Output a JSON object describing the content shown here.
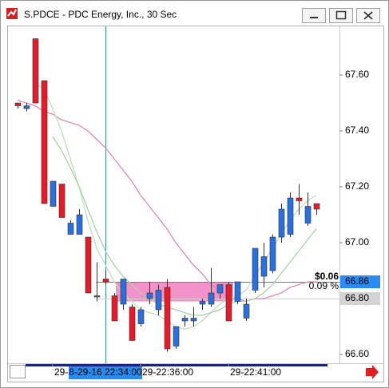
{
  "window_title": "S.PDCE - PDC Energy, Inc., 30 Sec",
  "chart_data": {
    "type": "candlestick",
    "categories": [
      null,
      null,
      null,
      null,
      "29-",
      null,
      null,
      null,
      null,
      null,
      "8-29-16 22:34:00",
      null,
      null,
      null,
      "29-22:36:00",
      null,
      null,
      null,
      null,
      null,
      null,
      null,
      null,
      null,
      "29-22:41:00",
      null,
      null,
      null,
      null,
      null,
      null,
      null,
      null,
      null,
      null
    ],
    "cursor_index": 10,
    "open": [
      67.5,
      67.48,
      67.73,
      67.58,
      67.13,
      67.21,
      67.03,
      67.03,
      67.02,
      66.81,
      66.87,
      66.81,
      66.78,
      66.77,
      66.71,
      66.8,
      66.76,
      66.84,
      66.63,
      66.72,
      66.72,
      66.78,
      66.78,
      66.82,
      66.85,
      66.79,
      66.73,
      66.83,
      66.88,
      66.9,
      67.02,
      67.03,
      67.16,
      67.07,
      67.14
    ],
    "high": [
      67.5,
      67.5,
      67.73,
      67.58,
      67.22,
      67.21,
      67.08,
      67.12,
      67.02,
      66.93,
      66.9,
      66.82,
      66.87,
      66.78,
      66.77,
      66.86,
      66.85,
      66.87,
      66.7,
      66.74,
      66.77,
      66.8,
      66.91,
      66.85,
      66.86,
      66.86,
      66.8,
      66.98,
      67.0,
      67.03,
      67.14,
      67.18,
      67.21,
      67.18,
      67.14
    ],
    "low": [
      67.48,
      67.47,
      67.5,
      67.14,
      67.13,
      67.09,
      67.03,
      67.03,
      66.82,
      66.79,
      66.85,
      66.72,
      66.76,
      66.65,
      66.7,
      66.78,
      66.74,
      66.61,
      66.62,
      66.7,
      66.7,
      66.76,
      66.77,
      66.8,
      66.72,
      66.78,
      66.72,
      66.82,
      66.84,
      66.89,
      67.0,
      67.02,
      67.1,
      67.06,
      67.1
    ],
    "close": [
      67.49,
      67.49,
      67.5,
      67.14,
      67.22,
      67.09,
      67.07,
      67.1,
      66.82,
      66.81,
      66.86,
      66.72,
      66.87,
      66.65,
      66.76,
      66.82,
      66.83,
      66.62,
      66.7,
      66.73,
      66.73,
      66.79,
      66.82,
      66.85,
      66.72,
      66.86,
      66.78,
      66.98,
      66.95,
      67.02,
      67.12,
      67.16,
      67.15,
      67.13,
      67.12
    ],
    "up_color": "#2a6fdb",
    "down_color": "#e31b2b",
    "lines": [
      {
        "color": "#e58ab0",
        "values": [
          67.51,
          67.5,
          67.49,
          67.47,
          67.46,
          67.44,
          67.43,
          67.42,
          67.4,
          67.37,
          67.34,
          67.3,
          67.26,
          67.22,
          67.17,
          67.13,
          67.09,
          67.05,
          67.0,
          66.96,
          66.92,
          66.89,
          66.85,
          66.83,
          66.8,
          66.8,
          66.79,
          66.8,
          66.8,
          66.81,
          66.82,
          66.84,
          66.85,
          66.86,
          66.86
        ]
      },
      {
        "color": "#bfe0bf",
        "values": [
          null,
          null,
          67.57,
          67.55,
          67.48,
          67.4,
          67.3,
          67.2,
          67.08,
          66.98,
          66.92,
          66.86,
          66.82,
          66.79,
          66.76,
          66.75,
          66.74,
          66.72,
          66.7,
          66.69,
          66.7,
          66.72,
          66.75,
          66.78,
          66.8,
          66.81,
          66.83,
          66.88,
          66.93,
          66.98,
          67.03,
          67.08,
          67.12,
          67.15,
          67.17
        ]
      },
      {
        "color": "#a8d4a8",
        "values": [
          null,
          null,
          null,
          null,
          67.38,
          67.33,
          67.27,
          67.2,
          67.12,
          67.04,
          66.97,
          66.92,
          66.88,
          66.85,
          66.82,
          66.8,
          66.78,
          66.77,
          66.76,
          66.75,
          66.74,
          66.74,
          66.75,
          66.76,
          66.78,
          66.79,
          66.79,
          66.8,
          66.82,
          66.85,
          66.89,
          66.93,
          66.97,
          67.01,
          67.05
        ]
      }
    ],
    "zone": {
      "from": 66.79,
      "to": 66.86,
      "color": "#f07fc0"
    },
    "price_markers": [
      {
        "value": 66.86,
        "label": "66.86",
        "color": "#2a8cf0",
        "text_color": "#ffffff"
      },
      {
        "value": 66.8,
        "label": "66.80",
        "color": "#d4d4d4",
        "text_color": "#000000"
      }
    ],
    "change_label": "$0.06",
    "change_pct_label": "0.09 %",
    "ylim": [
      66.57,
      67.77
    ],
    "yticks": [
      {
        "value": 66.6,
        "label": "66.60"
      },
      {
        "value": 67.0,
        "label": "67.00"
      },
      {
        "value": 67.2,
        "label": "67.20"
      },
      {
        "value": 67.4,
        "label": "67.40"
      },
      {
        "value": 67.6,
        "label": "67.60"
      }
    ]
  }
}
